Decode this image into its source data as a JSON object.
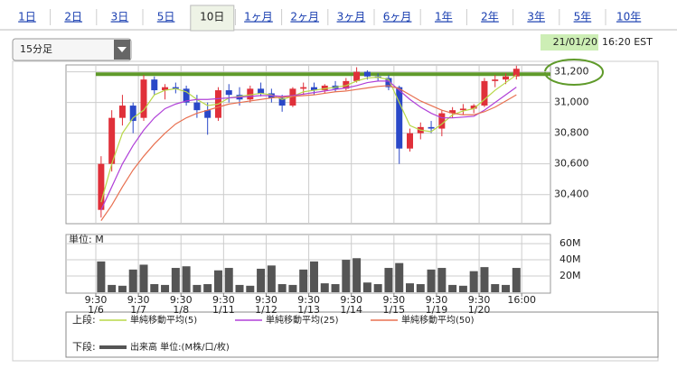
{
  "tabs": {
    "items": [
      "1日",
      "2日",
      "3日",
      "5日",
      "10日",
      "1ヶ月",
      "2ヶ月",
      "3ヶ月",
      "6ヶ月",
      "1年",
      "2年",
      "3年",
      "5年",
      "10年"
    ],
    "selected": 4
  },
  "dropdown": "15分足",
  "timestamp": {
    "date": "21/01/20",
    "time": "16:20 EST"
  },
  "chart_data": {
    "type": "candlestick",
    "x": [
      0.5,
      1.5,
      2.5,
      3.5,
      4.5,
      5.5,
      6.5,
      7.5,
      8.5,
      9.5,
      10.5,
      11.5,
      12.5,
      13.5,
      14.5,
      15.5,
      16.5,
      17.5,
      18.5,
      19.5,
      20.5,
      21.5,
      22.5,
      23.5,
      24.5,
      25.5,
      26.5,
      27.5,
      28.5,
      29.5,
      30.5,
      31.5,
      32.5,
      33.5,
      34.5,
      35.5,
      36.5,
      37.5,
      38.5,
      39.5
    ],
    "open": [
      30300,
      30600,
      30900,
      30980,
      30900,
      31150,
      31080,
      31100,
      31090,
      31000,
      30950,
      30900,
      31080,
      31050,
      31020,
      31090,
      31060,
      31030,
      30980,
      31090,
      31100,
      31080,
      31110,
      31090,
      31140,
      31200,
      31170,
      31160,
      31100,
      30700,
      30800,
      30840,
      30830,
      30930,
      30950,
      30960,
      30980,
      31140,
      31150,
      31170
    ],
    "high": [
      30650,
      30950,
      31050,
      31000,
      31180,
      31170,
      31120,
      31130,
      31110,
      31050,
      31000,
      31100,
      31120,
      31100,
      31110,
      31130,
      31090,
      31050,
      31100,
      31130,
      31130,
      31120,
      31140,
      31160,
      31230,
      31210,
      31190,
      31180,
      31110,
      30830,
      30870,
      30880,
      30950,
      30970,
      30990,
      30990,
      31160,
      31180,
      31190,
      31240
    ],
    "low": [
      30250,
      30550,
      30850,
      30800,
      30880,
      31050,
      31020,
      31060,
      30980,
      30900,
      30790,
      30880,
      31000,
      30980,
      31000,
      31040,
      31000,
      30940,
      30970,
      31050,
      31050,
      31060,
      31070,
      31080,
      31130,
      31150,
      31140,
      31080,
      30600,
      30680,
      30760,
      30800,
      30780,
      30900,
      30920,
      30930,
      30970,
      31100,
      31120,
      31150
    ],
    "close": [
      30600,
      30900,
      30980,
      30880,
      31150,
      31080,
      31100,
      31090,
      31000,
      30950,
      30900,
      31080,
      31050,
      31020,
      31090,
      31060,
      31030,
      30980,
      31090,
      31100,
      31080,
      31110,
      31090,
      31140,
      31200,
      31170,
      31160,
      31100,
      30700,
      30800,
      30840,
      30830,
      30930,
      30950,
      30960,
      30980,
      31140,
      31150,
      31170,
      31220
    ],
    "up_color": "#e0303a",
    "down_color": "#2a48c8",
    "ma": [
      {
        "name": "単純移動平均(5)",
        "color": "#b8d848",
        "values": [
          30350,
          30600,
          30800,
          30900,
          30950,
          31050,
          31080,
          31090,
          31070,
          31020,
          30980,
          30990,
          31030,
          31040,
          31050,
          31060,
          31050,
          31020,
          31040,
          31070,
          31080,
          31090,
          31100,
          31110,
          31140,
          31160,
          31165,
          31150,
          31000,
          30850,
          30820,
          30810,
          30860,
          30920,
          30945,
          30960,
          31020,
          31080,
          31130,
          31180
        ]
      },
      {
        "name": "単純移動平均(25)",
        "color": "#b040d8",
        "values": [
          30300,
          30450,
          30600,
          30720,
          30820,
          30900,
          30960,
          30990,
          31010,
          31020,
          31020,
          31025,
          31030,
          31035,
          31040,
          31045,
          31045,
          31040,
          31045,
          31055,
          31065,
          31075,
          31085,
          31095,
          31110,
          31130,
          31140,
          31140,
          31080,
          31020,
          30970,
          30930,
          30900,
          30900,
          30905,
          30910,
          30950,
          31000,
          31050,
          31100
        ]
      },
      {
        "name": "単純移動平均(50)",
        "color": "#e87050",
        "values": [
          30230,
          30330,
          30450,
          30560,
          30650,
          30730,
          30800,
          30860,
          30900,
          30930,
          30950,
          30970,
          30990,
          31000,
          31010,
          31020,
          31030,
          31035,
          31040,
          31045,
          31050,
          31060,
          31070,
          31075,
          31085,
          31095,
          31105,
          31110,
          31090,
          31050,
          31010,
          30980,
          30950,
          30930,
          30920,
          30920,
          30940,
          30970,
          31010,
          31050
        ]
      }
    ],
    "ylim": [
      30210,
      31245
    ],
    "yticks": [
      {
        "value": 30400,
        "label": "30,400"
      },
      {
        "value": 30600,
        "label": "30,600"
      },
      {
        "value": 30800,
        "label": "30,800"
      },
      {
        "value": 31000,
        "label": "31,000"
      },
      {
        "value": 31200,
        "label": "31,200"
      }
    ],
    "xlim": [
      -2.8,
      42.7
    ],
    "xticks": [
      0,
      4,
      8,
      12,
      16,
      20,
      24,
      28,
      32,
      36,
      40
    ],
    "xtick_labels": [
      "9:30",
      "9:30",
      "9:30",
      "9:30",
      "9:30",
      "9:30",
      "9:30",
      "9:30",
      "9:30",
      "9:30",
      "16:00"
    ],
    "xtick_dates": [
      "1/6",
      "1/7",
      "1/8",
      "1/11",
      "1/12",
      "1/13",
      "1/14",
      "1/15",
      "1/19",
      "1/20"
    ],
    "grid": true,
    "hline": {
      "value": 31185,
      "color": "#5f9a2a"
    },
    "volume": {
      "label": "単位: M",
      "name": "出来高 単位:(M株/口/枚)",
      "color": "#555555",
      "values": [
        38,
        9,
        8,
        28,
        34,
        10,
        9,
        30,
        32,
        9,
        10,
        27,
        30,
        9,
        8,
        29,
        33,
        10,
        9,
        28,
        38,
        11,
        10,
        40,
        42,
        12,
        10,
        30,
        36,
        11,
        10,
        28,
        30,
        9,
        8,
        26,
        31,
        10,
        9,
        30
      ],
      "ylim": [
        0,
        69
      ],
      "yticks": [
        {
          "value": 20,
          "label": "20M"
        },
        {
          "value": 40,
          "label": "40M"
        },
        {
          "value": 60,
          "label": "60M"
        }
      ]
    },
    "legend_upper": "上段:",
    "legend_lower": "下段:"
  }
}
